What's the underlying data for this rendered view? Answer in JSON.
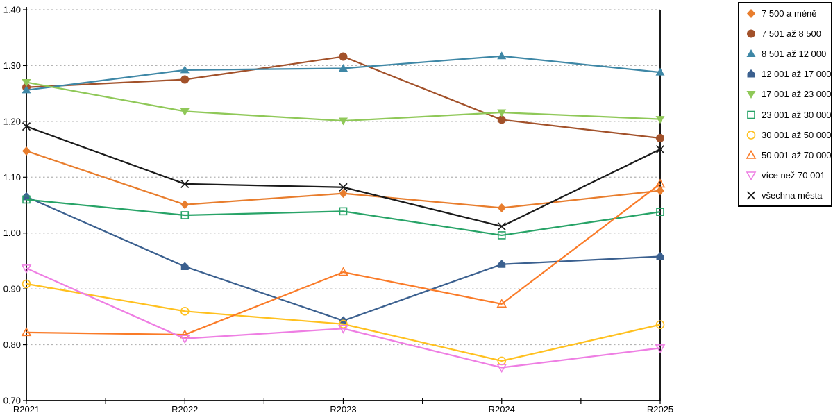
{
  "chart_data": {
    "type": "line",
    "title": "",
    "xlabel": "",
    "ylabel": "",
    "x": [
      "R2021",
      "R2022",
      "R2023",
      "R2024",
      "R2025"
    ],
    "ylim": [
      0.7,
      1.4
    ],
    "y_step": 0.1,
    "y_ticks": [
      "0.70",
      "0.80",
      "0.90",
      "1.00",
      "1.10",
      "1.20",
      "1.30",
      "1.40"
    ],
    "grid": "dashed-horizontal",
    "legend_position": "outside-right-top",
    "series": [
      {
        "name": "7 500 a méně",
        "color": "#E87D2D",
        "marker": "diamond-filled",
        "values": [
          1.147,
          1.051,
          1.071,
          1.045,
          1.076
        ]
      },
      {
        "name": "7 501 až 8 500",
        "color": "#A2512A",
        "marker": "circle-filled",
        "values": [
          1.261,
          1.275,
          1.316,
          1.203,
          1.17
        ]
      },
      {
        "name": "8 501 až 12 000",
        "color": "#3E87A6",
        "marker": "triangle-up-filled",
        "values": [
          1.256,
          1.292,
          1.295,
          1.317,
          1.288
        ]
      },
      {
        "name": "12 001 až 17 000",
        "color": "#3B608F",
        "marker": "pentagon-filled",
        "values": [
          1.065,
          0.94,
          0.843,
          0.944,
          0.958
        ]
      },
      {
        "name": "17 001 až 23 000",
        "color": "#8FC858",
        "marker": "triangle-down-filled",
        "values": [
          1.27,
          1.218,
          1.201,
          1.216,
          1.204
        ]
      },
      {
        "name": "23 001 až 30 000",
        "color": "#27A367",
        "marker": "square-open",
        "values": [
          1.06,
          1.032,
          1.039,
          0.996,
          1.038
        ]
      },
      {
        "name": "30 001 až 50 000",
        "color": "#FFC01E",
        "marker": "circle-open",
        "values": [
          0.909,
          0.86,
          0.837,
          0.771,
          0.836
        ]
      },
      {
        "name": "50 001 až 70 000",
        "color": "#FA7B28",
        "marker": "triangle-up-open",
        "values": [
          0.822,
          0.818,
          0.93,
          0.873,
          1.088
        ]
      },
      {
        "name": "více než 70 001",
        "color": "#EE7EE3",
        "marker": "triangle-down-open",
        "values": [
          0.937,
          0.811,
          0.829,
          0.759,
          0.794
        ]
      },
      {
        "name": "všechna města",
        "color": "#1A1A1A",
        "marker": "x-cross",
        "values": [
          1.191,
          1.088,
          1.082,
          1.012,
          1.15
        ]
      }
    ],
    "style": {
      "gridline_color": "#b3b3b3",
      "axis_color": "#000000",
      "background": "#ffffff"
    }
  }
}
